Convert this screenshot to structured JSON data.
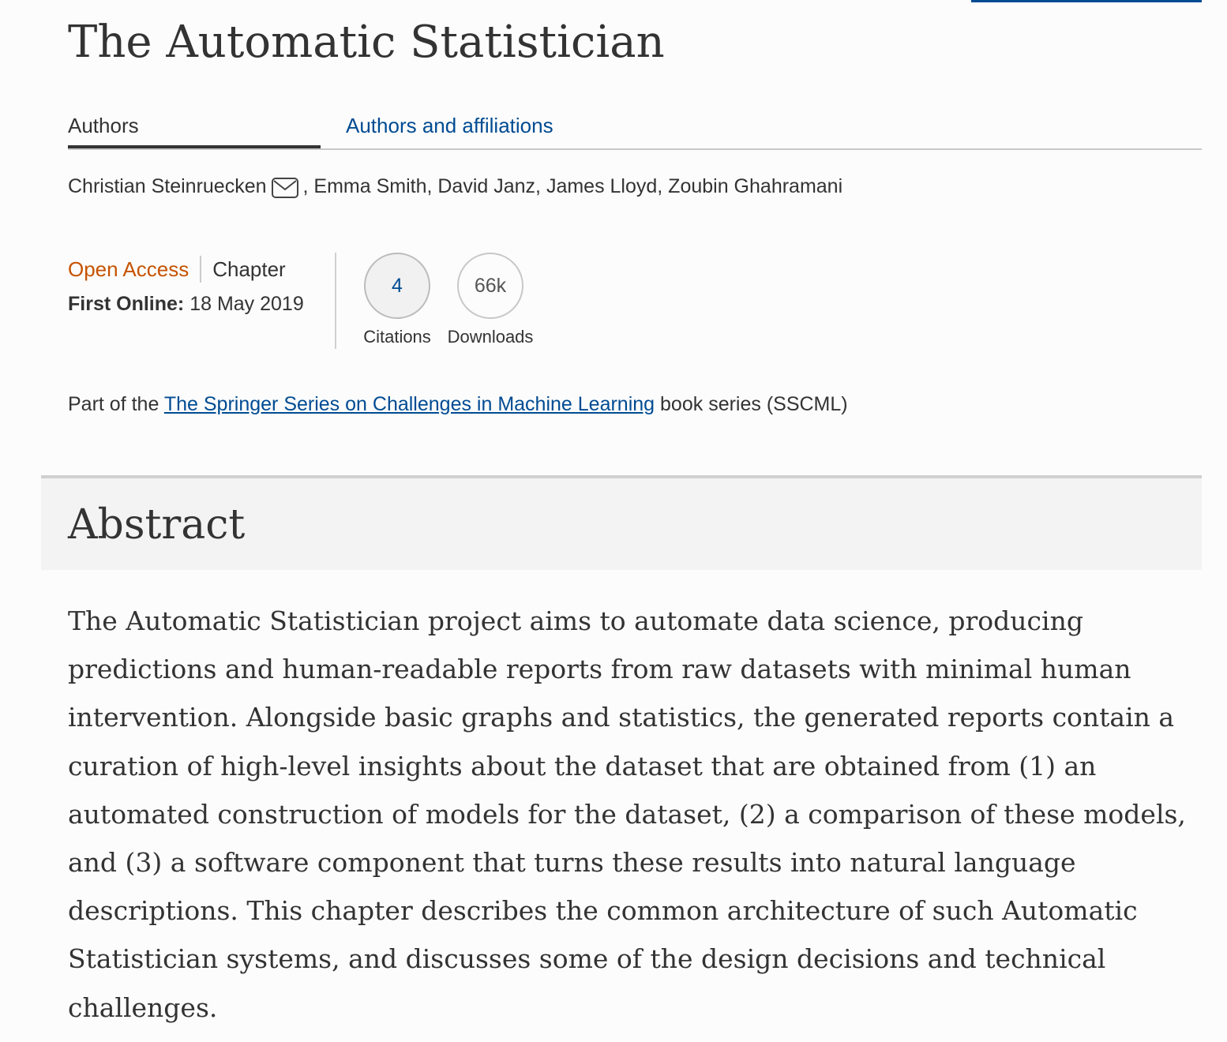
{
  "title": "The Automatic Statistician",
  "tabs": [
    {
      "label": "Authors"
    },
    {
      "label": "Authors and affiliations"
    }
  ],
  "authors": {
    "first": "Christian Steinruecken",
    "rest": ", Emma Smith, David Janz, James Lloyd, Zoubin Ghahramani",
    "contact_icon": "envelope-icon"
  },
  "meta": {
    "access": "Open Access",
    "type": "Chapter",
    "first_online_label": "First Online:",
    "first_online_date": "18 May 2019"
  },
  "metrics": {
    "citations": {
      "value": "4",
      "label": "Citations"
    },
    "downloads": {
      "value": "66k",
      "label": "Downloads"
    }
  },
  "series": {
    "prefix": "Part of the",
    "link": "The Springer Series on Challenges in Machine Learning",
    "suffix": "book series (SSCML)"
  },
  "abstract": {
    "heading": "Abstract",
    "text": "The Automatic Statistician project aims to automate data science, producing predictions and human-readable reports from raw datasets with minimal human intervention. Alongside basic graphs and statistics, the generated reports contain a curation of high-level insights about the dataset that are obtained from (1) an automated construction of models for the dataset, (2) a comparison of these models, and (3) a software component that turns these results into natural language descriptions. This chapter describes the common architecture of such Automatic Statistician systems, and discusses some of the design decisions and technical challenges."
  },
  "colors": {
    "link": "#004b93",
    "open_access": "#c65301",
    "text": "#333333"
  }
}
